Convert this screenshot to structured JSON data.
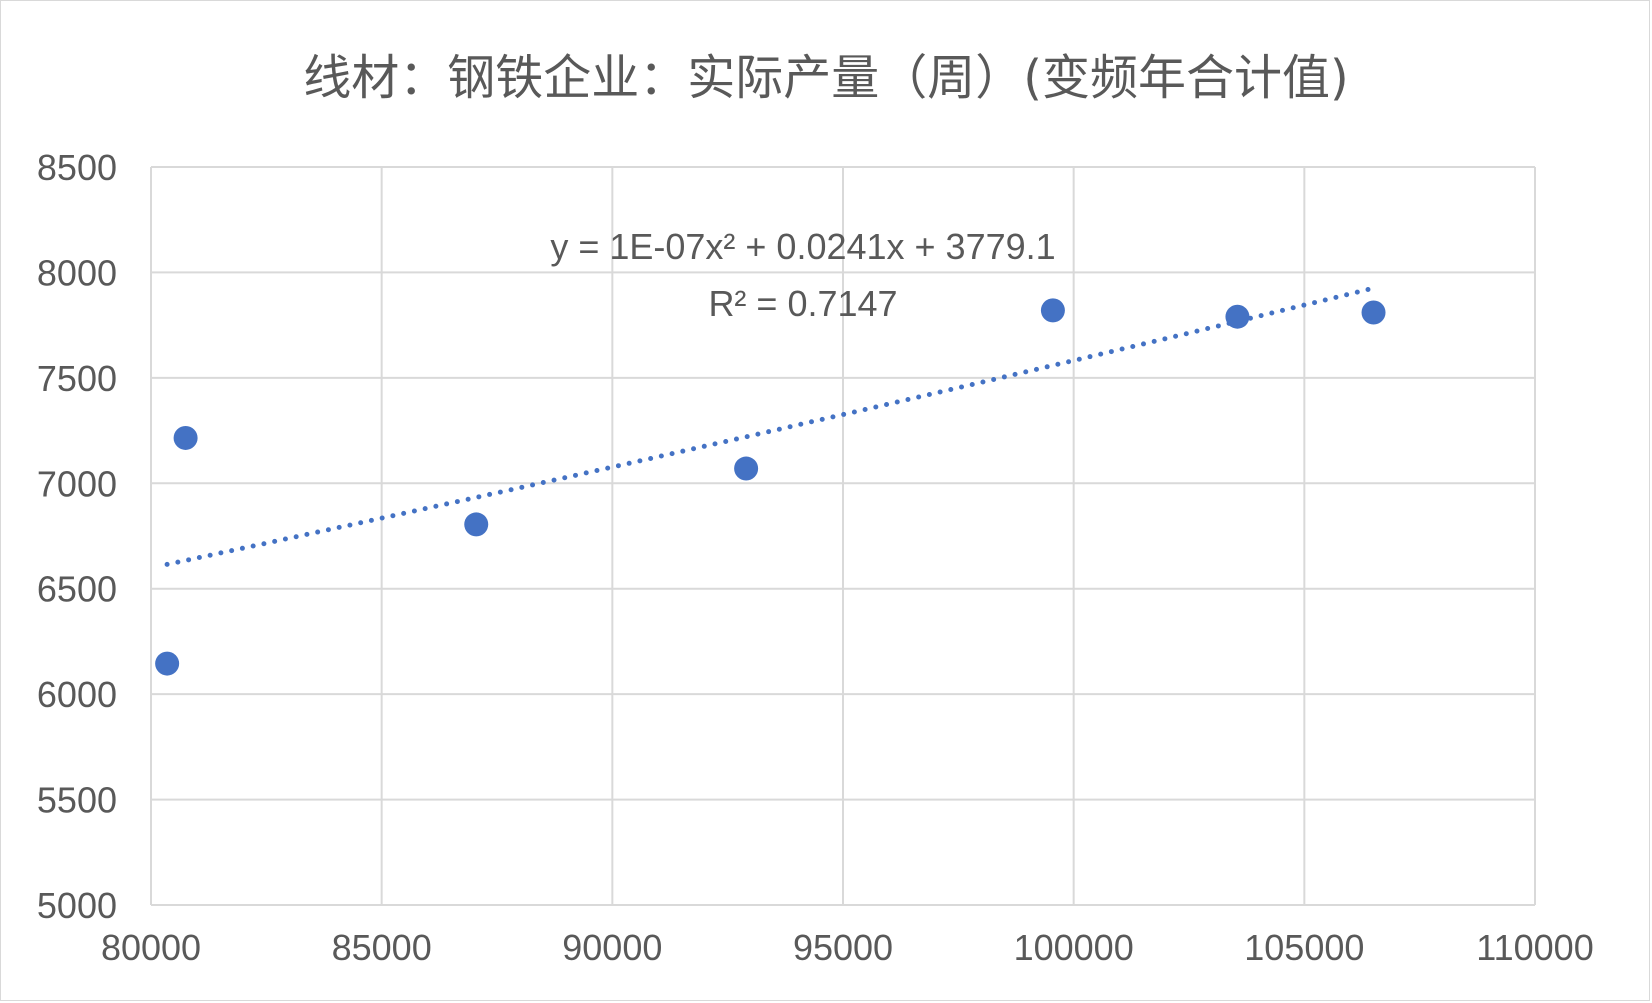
{
  "chart_data": {
    "type": "scatter",
    "title": "线材：钢铁企业：实际产量（周）(变频年合计值)",
    "xlabel": "",
    "ylabel": "",
    "xlim": [
      80000,
      110000
    ],
    "ylim": [
      5000,
      8500
    ],
    "x_ticks": [
      80000,
      85000,
      90000,
      95000,
      100000,
      105000,
      110000
    ],
    "y_ticks": [
      5000,
      5500,
      6000,
      6500,
      7000,
      7500,
      8000,
      8500
    ],
    "grid": true,
    "legend": "none",
    "points": [
      {
        "x": 80350,
        "y": 6145
      },
      {
        "x": 80750,
        "y": 7215
      },
      {
        "x": 87050,
        "y": 6805
      },
      {
        "x": 92900,
        "y": 7070
      },
      {
        "x": 99550,
        "y": 7820
      },
      {
        "x": 103550,
        "y": 7790
      },
      {
        "x": 106500,
        "y": 7810
      }
    ],
    "trendline": {
      "type": "polynomial",
      "order": 2,
      "style": "dotted",
      "x_range": [
        80350,
        106500
      ],
      "equation": "y = 1E-07x² + 0.0241x + 3779.1",
      "r_squared": "R² = 0.7147"
    },
    "colors": {
      "marker": "#4472c4",
      "trendline": "#4472c4",
      "grid": "#d9d9d9",
      "text": "#595959"
    }
  }
}
